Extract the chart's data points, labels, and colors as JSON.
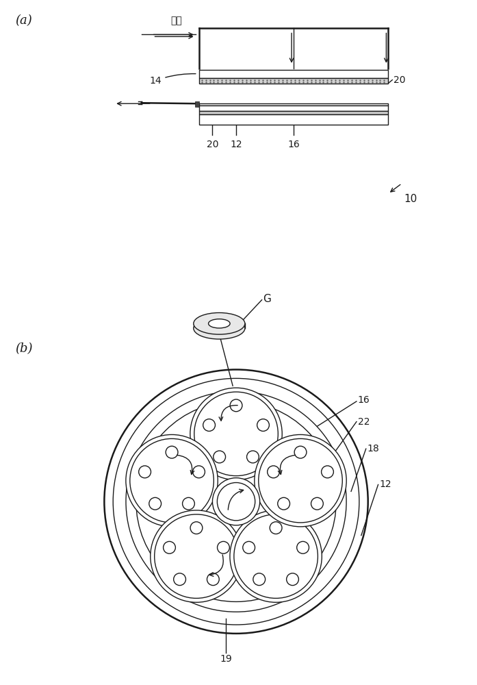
{
  "bg_color": "#ffffff",
  "label_a": "(a)",
  "label_b": "(b)",
  "slurry_label": "浆料",
  "ref_10": "10",
  "ref_12": "12",
  "ref_14": "14",
  "ref_16": "16",
  "ref_18": "18",
  "ref_19": "19",
  "ref_20": "20",
  "ref_22": "22",
  "ref_G": "G",
  "line_color": "#1a1a1a",
  "lw": 1.0,
  "lw_thick": 1.8
}
